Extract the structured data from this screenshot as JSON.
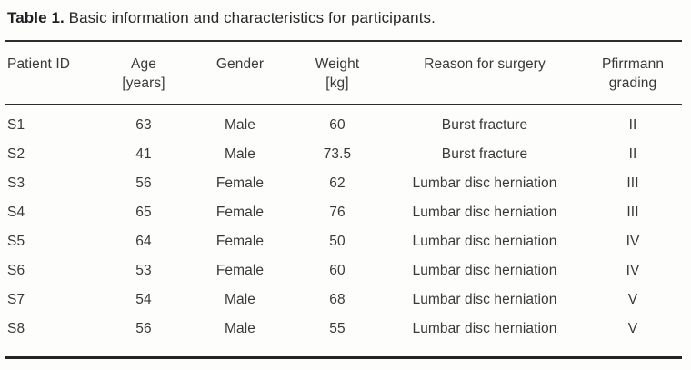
{
  "title": {
    "label": "Table 1.",
    "text": "Basic information and characteristics for participants."
  },
  "colors": {
    "background": "#fdfdfc",
    "text": "#39393b",
    "rule": "#2d2d2d"
  },
  "table": {
    "columns": [
      {
        "label": "Patient ID",
        "sub": ""
      },
      {
        "label": "Age",
        "sub": "[years]"
      },
      {
        "label": "Gender",
        "sub": ""
      },
      {
        "label": "Weight",
        "sub": "[kg]"
      },
      {
        "label": "Reason for surgery",
        "sub": ""
      },
      {
        "label": "Pfirrmann",
        "sub": "grading"
      }
    ],
    "rows": [
      [
        "S1",
        "63",
        "Male",
        "60",
        "Burst fracture",
        "II"
      ],
      [
        "S2",
        "41",
        "Male",
        "73.5",
        "Burst fracture",
        "II"
      ],
      [
        "S3",
        "56",
        "Female",
        "62",
        "Lumbar disc herniation",
        "III"
      ],
      [
        "S4",
        "65",
        "Female",
        "76",
        "Lumbar disc herniation",
        "III"
      ],
      [
        "S5",
        "64",
        "Female",
        "50",
        "Lumbar disc herniation",
        "IV"
      ],
      [
        "S6",
        "53",
        "Female",
        "60",
        "Lumbar disc herniation",
        "IV"
      ],
      [
        "S7",
        "54",
        "Male",
        "68",
        "Lumbar disc herniation",
        "V"
      ],
      [
        "S8",
        "56",
        "Male",
        "55",
        "Lumbar disc herniation",
        "V"
      ]
    ]
  }
}
